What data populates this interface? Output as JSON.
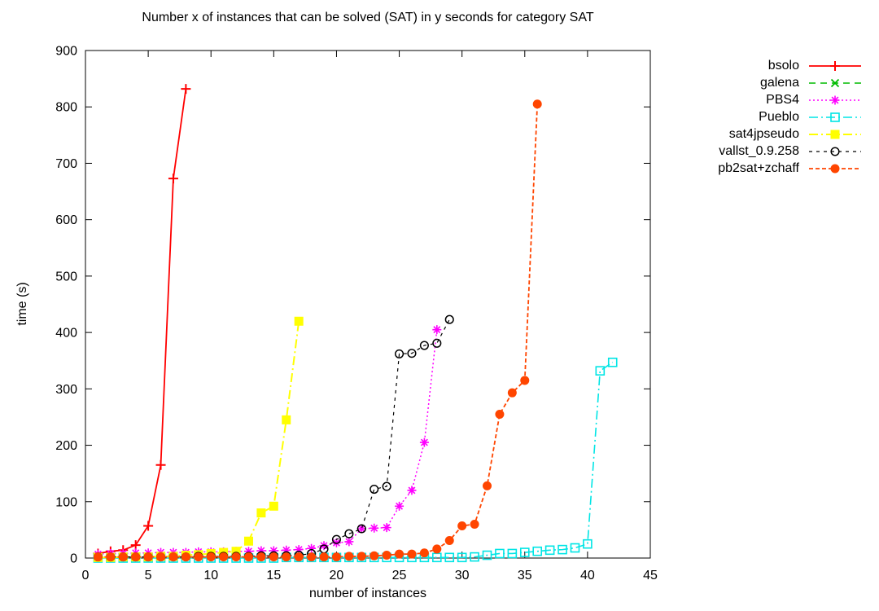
{
  "chart_data": {
    "type": "line",
    "title": "Number x of instances that can be solved (SAT) in y seconds for category SAT",
    "xlabel": "number of instances",
    "ylabel": "time (s)",
    "xlim": [
      0,
      45
    ],
    "ylim": [
      0,
      900
    ],
    "xticks": [
      0,
      5,
      10,
      15,
      20,
      25,
      30,
      35,
      40,
      45
    ],
    "yticks": [
      0,
      100,
      200,
      300,
      400,
      500,
      600,
      700,
      800,
      900
    ],
    "grid": false,
    "legend_position": "outside-top-right",
    "series": [
      {
        "name": "bsolo",
        "color": "#ff0000",
        "marker": "plus",
        "dash": "solid",
        "width": 1.8,
        "x": [
          1,
          2,
          3,
          4,
          5,
          6,
          7,
          8
        ],
        "y": [
          8,
          12,
          14,
          23,
          57,
          165,
          673,
          832
        ]
      },
      {
        "name": "galena",
        "color": "#00bb00",
        "marker": "cross",
        "dash": "8 6",
        "width": 1.5,
        "x": [],
        "y": []
      },
      {
        "name": "PBS4",
        "color": "#ff00ff",
        "marker": "asterisk",
        "dash": "2 3",
        "width": 1.5,
        "x": [
          1,
          2,
          3,
          4,
          5,
          6,
          7,
          8,
          9,
          10,
          11,
          12,
          13,
          14,
          15,
          16,
          17,
          18,
          19,
          20,
          21,
          22,
          23,
          24,
          25,
          26,
          27,
          28
        ],
        "y": [
          7,
          8,
          8,
          9,
          9,
          10,
          10,
          10,
          11,
          11,
          11,
          12,
          12,
          13,
          13,
          14,
          15,
          17,
          22,
          27,
          29,
          52,
          53,
          54,
          92,
          120,
          205,
          405
        ]
      },
      {
        "name": "Pueblo",
        "color": "#00e5e5",
        "marker": "square-open",
        "dash": "11 4 2 4",
        "width": 1.6,
        "x": [
          1,
          2,
          3,
          4,
          5,
          6,
          7,
          8,
          9,
          10,
          11,
          12,
          13,
          14,
          15,
          16,
          17,
          18,
          19,
          20,
          21,
          22,
          23,
          24,
          25,
          26,
          27,
          28,
          29,
          30,
          31,
          32,
          33,
          34,
          35,
          36,
          37,
          38,
          39,
          40,
          41,
          42
        ],
        "y": [
          0,
          0,
          0,
          0,
          0,
          0,
          0,
          0,
          0,
          0,
          0,
          0,
          0,
          0,
          0,
          1,
          1,
          1,
          1,
          1,
          1,
          1,
          1,
          1,
          1,
          1,
          1,
          1,
          1,
          1,
          2,
          5,
          8,
          8,
          10,
          12,
          14,
          15,
          18,
          25,
          332,
          347
        ]
      },
      {
        "name": "sat4jpseudo",
        "color": "#ffff00",
        "marker": "square-filled",
        "dash": "11 4 2 4",
        "width": 2,
        "x": [
          1,
          2,
          3,
          4,
          5,
          6,
          7,
          8,
          9,
          10,
          11,
          12,
          13,
          14,
          15,
          16,
          17
        ],
        "y": [
          1,
          1,
          2,
          2,
          2,
          3,
          3,
          5,
          6,
          8,
          10,
          12,
          30,
          80,
          92,
          245,
          420
        ]
      },
      {
        "name": "vallst_0.9.258",
        "color": "#000000",
        "marker": "circle-open",
        "dash": "4 5",
        "width": 1.2,
        "x": [
          1,
          2,
          3,
          4,
          5,
          6,
          7,
          8,
          9,
          10,
          11,
          12,
          13,
          14,
          15,
          16,
          17,
          18,
          19,
          20,
          21,
          22,
          23,
          24,
          25,
          26,
          27,
          28,
          29
        ],
        "y": [
          2,
          2,
          2,
          2,
          2,
          2,
          2,
          2,
          3,
          3,
          3,
          3,
          3,
          4,
          4,
          4,
          5,
          8,
          16,
          33,
          43,
          52,
          122,
          127,
          362,
          363,
          377,
          381,
          423
        ]
      },
      {
        "name": "pb2sat+zchaff",
        "color": "#ff4500",
        "marker": "circle-filled",
        "dash": "5 3",
        "width": 1.8,
        "x": [
          1,
          2,
          3,
          4,
          5,
          6,
          7,
          8,
          9,
          10,
          11,
          12,
          13,
          14,
          15,
          16,
          17,
          18,
          19,
          20,
          21,
          22,
          23,
          24,
          25,
          26,
          27,
          28,
          29,
          30,
          31,
          32,
          33,
          34,
          35,
          36
        ],
        "y": [
          2,
          2,
          2,
          2,
          2,
          2,
          2,
          2,
          2,
          2,
          2,
          2,
          2,
          2,
          2,
          2,
          2,
          2,
          2,
          2,
          3,
          3,
          4,
          5,
          7,
          7,
          9,
          16,
          31,
          57,
          60,
          128,
          255,
          293,
          315,
          805
        ]
      }
    ]
  }
}
